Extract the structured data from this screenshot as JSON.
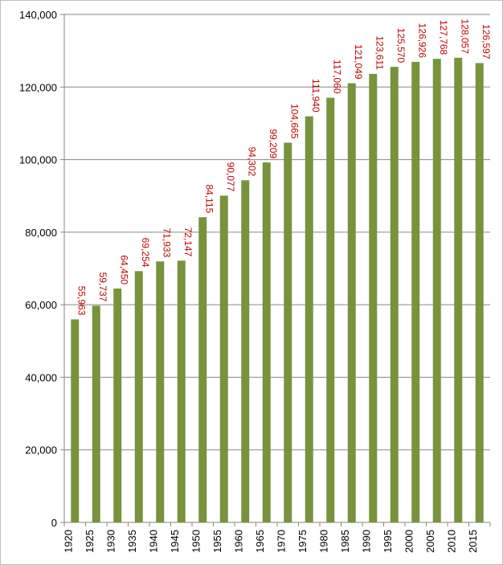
{
  "chart_data": {
    "type": "bar",
    "title": "",
    "xlabel": "",
    "ylabel": "",
    "categories": [
      "1920",
      "1925",
      "1930",
      "1935",
      "1940",
      "1945",
      "1950",
      "1955",
      "1960",
      "1965",
      "1970",
      "1975",
      "1980",
      "1985",
      "1990",
      "1995",
      "2000",
      "2005",
      "2010",
      "2015"
    ],
    "values": [
      55963,
      59737,
      64450,
      69254,
      71933,
      72147,
      84115,
      90077,
      94302,
      99209,
      104665,
      111940,
      117060,
      121049,
      123611,
      125570,
      126926,
      127768,
      128057,
      126597
    ],
    "data_labels": [
      "55,963",
      "59,737",
      "64,450",
      "69,254",
      "71,933",
      "72,147",
      "84,115",
      "90,077",
      "94,302",
      "99,209",
      "104,665",
      "111,940",
      "117,060",
      "121,049",
      "123,611",
      "125,570",
      "126,926",
      "127,768",
      "128,057",
      "126,597"
    ],
    "ylim": [
      0,
      140000
    ],
    "y_ticks": [
      0,
      20000,
      40000,
      60000,
      80000,
      100000,
      120000,
      140000
    ],
    "y_tick_labels": [
      "0",
      "20,000",
      "40,000",
      "60,000",
      "80,000",
      "100,000",
      "120,000",
      "140,000"
    ],
    "grid": true,
    "legend": "none",
    "colors": {
      "bar": "#77933c",
      "label": "#c00000",
      "grid": "#868686",
      "axis": "#868686"
    }
  }
}
